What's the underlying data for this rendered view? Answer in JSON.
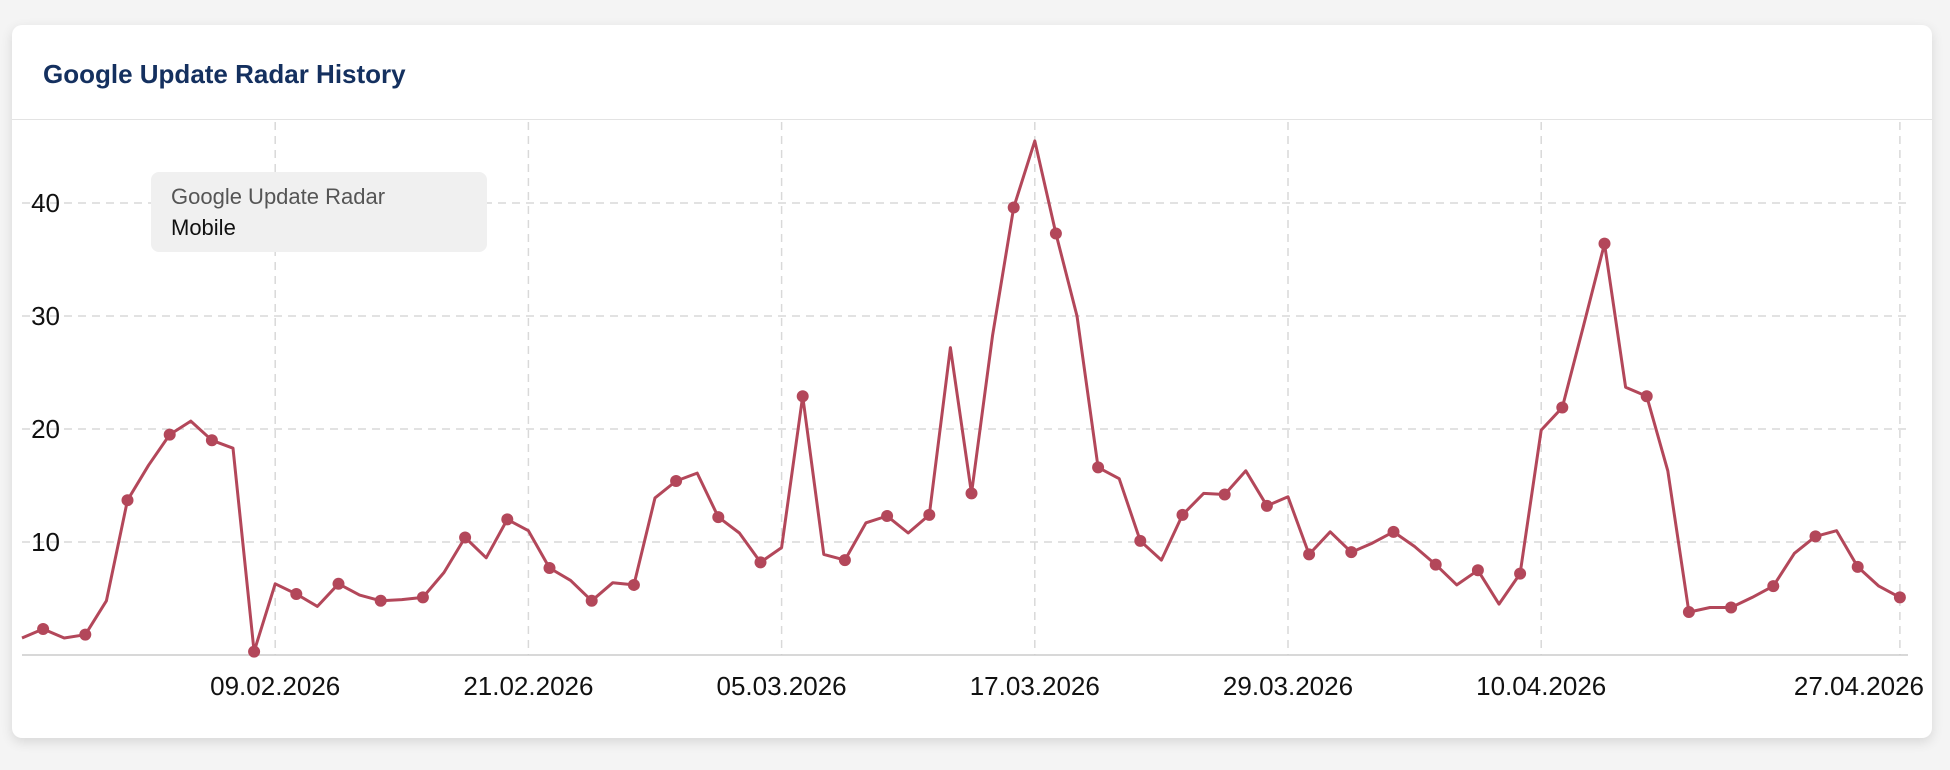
{
  "card": {
    "title": "Google Update Radar History"
  },
  "legend": {
    "title": "Google Update Radar",
    "subtitle": "Mobile"
  },
  "colors": {
    "series": "#b3475a",
    "grid": "#d9d9d9",
    "title": "#14305f"
  },
  "chart_data": {
    "type": "line",
    "title": "Google Update Radar History",
    "series": [
      {
        "name": "Google Update Radar Mobile"
      }
    ],
    "x_start": "28.01.2026",
    "x_step_days": 1,
    "values": [
      1.5,
      2.3,
      1.5,
      1.8,
      4.8,
      13.7,
      16.8,
      19.5,
      20.7,
      19.0,
      18.3,
      0.3,
      6.3,
      5.4,
      4.3,
      6.3,
      5.3,
      4.8,
      4.9,
      5.1,
      7.3,
      10.4,
      8.6,
      12.0,
      11.0,
      7.7,
      6.6,
      4.8,
      6.4,
      6.2,
      13.9,
      15.4,
      16.1,
      12.2,
      10.8,
      8.2,
      9.5,
      22.9,
      8.9,
      8.4,
      11.7,
      12.3,
      10.8,
      12.4,
      27.2,
      14.3,
      28.3,
      39.6,
      45.5,
      37.3,
      30.0,
      16.6,
      15.6,
      10.1,
      8.4,
      12.4,
      14.3,
      14.2,
      16.3,
      13.2,
      14.0,
      8.9,
      10.9,
      9.1,
      9.9,
      10.9,
      9.6,
      8.0,
      6.2,
      7.5,
      4.5,
      7.2,
      19.9,
      21.9,
      29.1,
      36.4,
      23.7,
      22.9,
      16.3,
      3.8,
      4.2,
      4.2,
      5.1,
      6.1,
      9.0,
      10.5,
      11.0,
      7.8,
      6.1,
      5.1
    ],
    "markers": [
      1,
      3,
      5,
      7,
      9,
      11,
      13,
      15,
      17,
      19,
      21,
      23,
      25,
      27,
      29,
      31,
      33,
      35,
      37,
      39,
      41,
      43,
      45,
      47,
      49,
      51,
      53,
      55,
      57,
      59,
      61,
      63,
      65,
      67,
      69,
      71,
      73,
      75,
      77,
      79,
      81,
      83,
      85,
      87,
      89
    ],
    "x_ticks": [
      {
        "label": "09.02.2026",
        "index": 12
      },
      {
        "label": "21.02.2026",
        "index": 24
      },
      {
        "label": "05.03.2026",
        "index": 36
      },
      {
        "label": "17.03.2026",
        "index": 48
      },
      {
        "label": "29.03.2026",
        "index": 60
      },
      {
        "label": "10.04.2026",
        "index": 72
      },
      {
        "label": "27.04.2026",
        "index": 89
      }
    ],
    "y_ticks": [
      10,
      20,
      30,
      40
    ],
    "ylim": [
      0,
      46
    ],
    "grid": true,
    "legend_position": "top-left"
  }
}
